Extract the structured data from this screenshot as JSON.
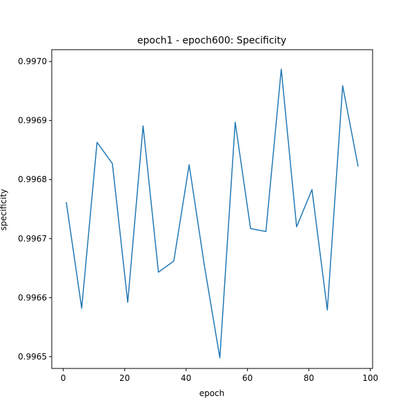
{
  "chart_data": {
    "type": "line",
    "title": "epoch1 - epoch600: Specificity",
    "xlabel": "epoch",
    "ylabel": "specificity",
    "xlim": [
      -3.75,
      100.75
    ],
    "ylim": [
      0.99648,
      0.99702
    ],
    "xticks": [
      0,
      20,
      40,
      60,
      80,
      100
    ],
    "yticks": [
      0.9965,
      0.9966,
      0.9967,
      0.9968,
      0.9969,
      0.997
    ],
    "ytick_labels": [
      "0.9965",
      "0.9966",
      "0.9967",
      "0.9968",
      "0.9969",
      "0.9970"
    ],
    "grid": false,
    "series": [
      {
        "color": "#1f77b4",
        "x": [
          1,
          6,
          11,
          16,
          21,
          26,
          31,
          36,
          41,
          46,
          51,
          56,
          61,
          66,
          71,
          76,
          81,
          86,
          91,
          96
        ],
        "y": [
          0.996761,
          0.996582,
          0.996863,
          0.996827,
          0.996592,
          0.996891,
          0.996643,
          0.996662,
          0.996825,
          0.996653,
          0.996498,
          0.996897,
          0.996717,
          0.996712,
          0.996987,
          0.99672,
          0.996783,
          0.996579,
          0.996959,
          0.996823
        ]
      }
    ]
  }
}
